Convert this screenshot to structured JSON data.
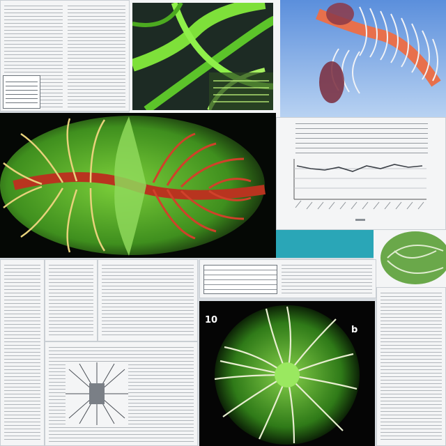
{
  "panel_label_left": "10",
  "panel_label_right": "b",
  "colors": {
    "leaf_green": "#4aa62a",
    "vein_red": "#c2331f",
    "vein_yellow": "#e6d27a",
    "sky_blue": "#6fa0df",
    "teal": "#2aa6b7",
    "paper": "#f4f5f6"
  }
}
